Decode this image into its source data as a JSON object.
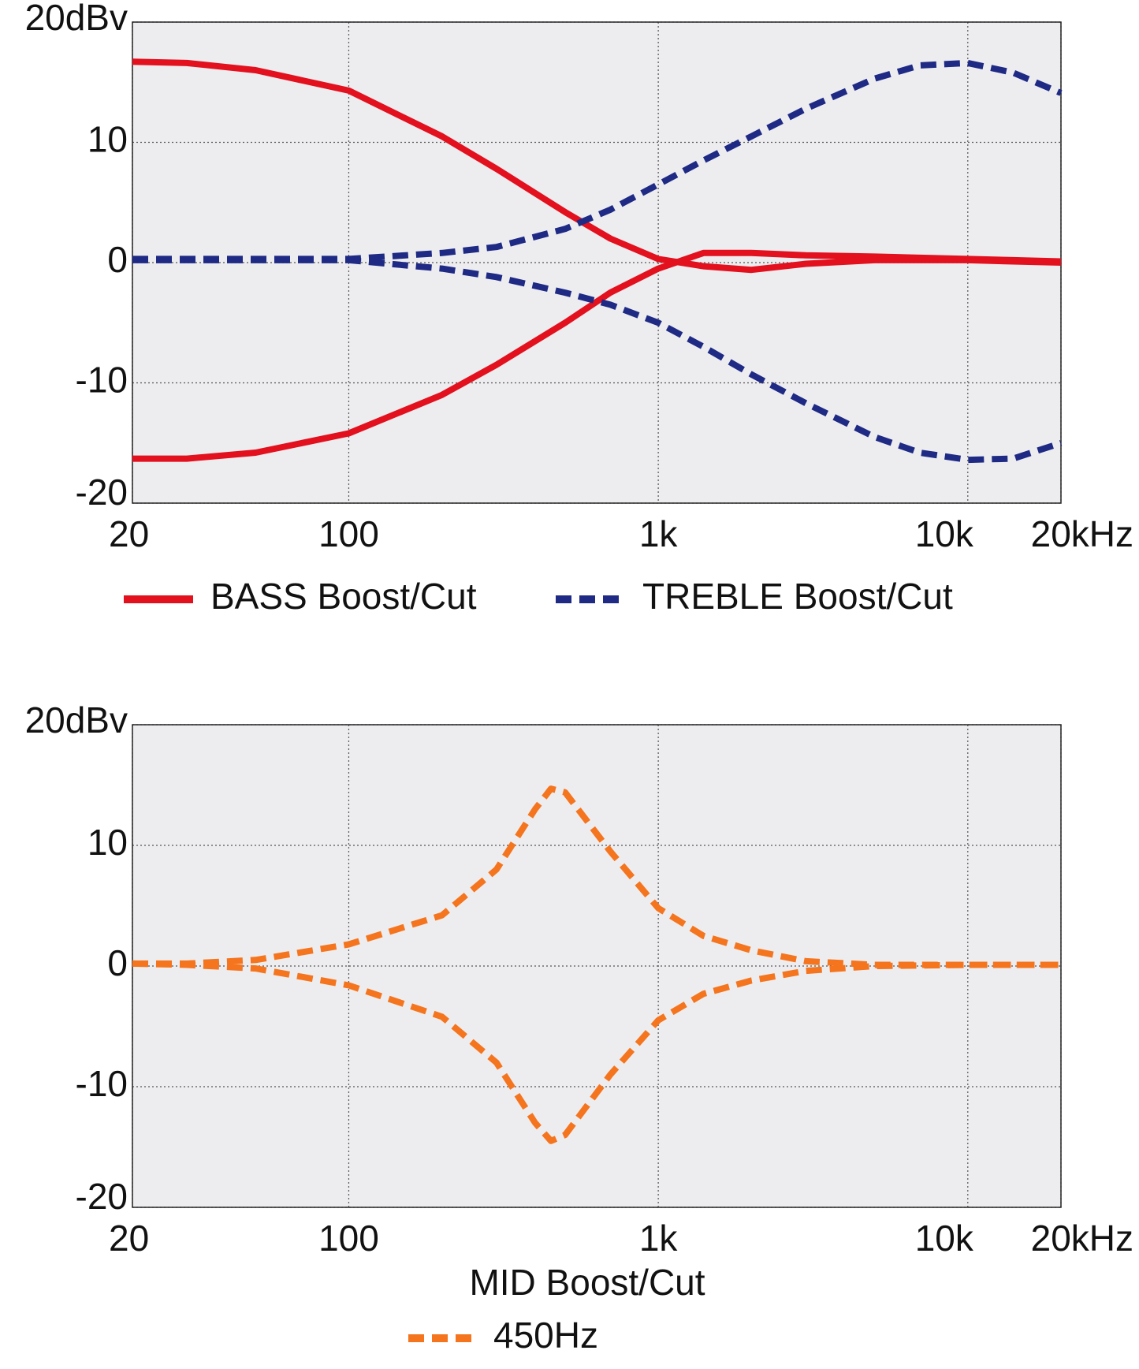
{
  "chart_data": [
    {
      "type": "line",
      "xscale": "log",
      "grid": true,
      "x": [
        20,
        30,
        50,
        100,
        200,
        300,
        500,
        700,
        1000,
        1400,
        2000,
        3000,
        5000,
        7000,
        10000,
        14000,
        20000
      ],
      "xlim": [
        20,
        20000
      ],
      "xticks": [
        20,
        100,
        {
          "value": 1000,
          "label": "1k"
        },
        {
          "value": 10000,
          "label": "10k"
        },
        {
          "value": 20000,
          "label": "20kHz"
        }
      ],
      "ylim": [
        -20,
        20
      ],
      "yticks": [
        -20,
        -10,
        0,
        10,
        {
          "value": 20,
          "label": "20dBv"
        }
      ],
      "series": [
        {
          "name": "BASS Boost/Cut",
          "color": "#e3101e",
          "dashed": false,
          "boost": [
            16.7,
            16.6,
            16.0,
            14.3,
            10.5,
            7.8,
            4.2,
            2.0,
            0.3,
            -0.3,
            -0.6,
            -0.1,
            0.2,
            0.2,
            0.2,
            0.1,
            0
          ],
          "cut": [
            -16.3,
            -16.3,
            -15.8,
            -14.2,
            -11,
            -8.5,
            -5,
            -2.5,
            -0.5,
            0.8,
            0.8,
            0.6,
            0.5,
            0.4,
            0.3,
            0.2,
            0.1
          ]
        },
        {
          "name": "TREBLE Boost/Cut",
          "color": "#1f2a85",
          "dashed": true,
          "boost": [
            0.3,
            0.3,
            0.3,
            0.3,
            0.8,
            1.3,
            2.8,
            4.4,
            6.5,
            8.5,
            10.5,
            12.8,
            15.3,
            16.4,
            16.6,
            15.8,
            14.1
          ],
          "cut": [
            0.2,
            0.2,
            0.2,
            0.2,
            -0.5,
            -1.2,
            -2.5,
            -3.5,
            -5,
            -7,
            -9.3,
            -11.7,
            -14.5,
            -15.8,
            -16.4,
            -16.3,
            -15
          ]
        }
      ]
    },
    {
      "type": "line",
      "xscale": "log",
      "grid": true,
      "title": "MID Boost/Cut",
      "x": [
        20,
        30,
        50,
        100,
        200,
        300,
        400,
        450,
        500,
        700,
        1000,
        1400,
        2000,
        3000,
        5000,
        10000,
        20000
      ],
      "xlim": [
        20,
        20000
      ],
      "xticks": [
        20,
        100,
        {
          "value": 1000,
          "label": "1k"
        },
        {
          "value": 10000,
          "label": "10k"
        },
        {
          "value": 20000,
          "label": "20kHz"
        }
      ],
      "ylim": [
        -20,
        20
      ],
      "yticks": [
        -20,
        -10,
        0,
        10,
        {
          "value": 20,
          "label": "20dBv"
        }
      ],
      "series": [
        {
          "name": "450Hz",
          "color": "#f5751e",
          "dashed": true,
          "boost": [
            0.2,
            0.2,
            0.5,
            1.8,
            4.2,
            8,
            13,
            14.7,
            14.4,
            9.5,
            4.8,
            2.5,
            1.3,
            0.4,
            0.1,
            0.1,
            0.1
          ],
          "cut": [
            0.2,
            0.1,
            -0.2,
            -1.6,
            -4.2,
            -8,
            -13,
            -14.5,
            -14,
            -9,
            -4.5,
            -2.3,
            -1.2,
            -0.4,
            0,
            0.1,
            0.1
          ]
        }
      ]
    }
  ]
}
